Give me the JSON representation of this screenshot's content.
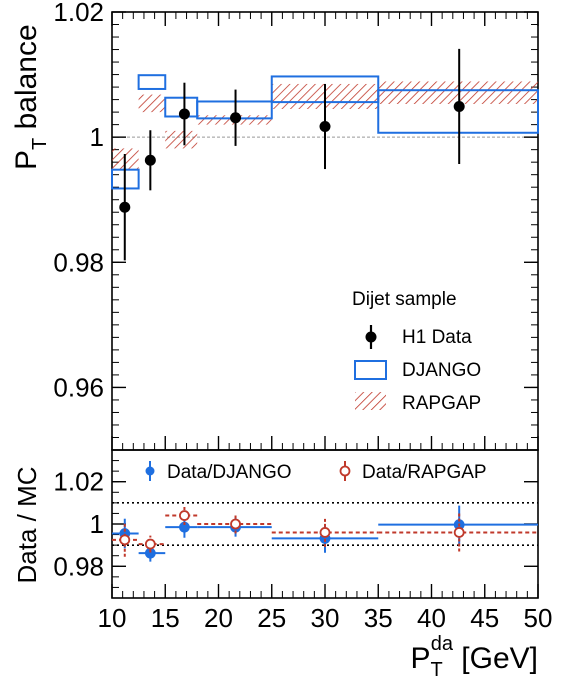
{
  "chart_data": [
    {
      "type": "scatter",
      "panel": "main",
      "ylabel_main": "P",
      "ylabel_sub": "T",
      "ylabel_rest": " balance",
      "ylim": [
        0.95,
        1.02
      ],
      "xlim": [
        10,
        50
      ],
      "yticks": [
        0.96,
        0.98,
        1,
        1.02
      ],
      "ytick_labels": [
        "0.96",
        "0.98",
        "1",
        "1.02"
      ],
      "reference_line": 1.0,
      "legend": {
        "title": "Dijet sample",
        "entries": [
          "H1 Data",
          "DJANGO",
          "RAPGAP"
        ],
        "position": "lower-right"
      },
      "series": [
        {
          "name": "H1 Data",
          "kind": "points",
          "color": "#000000",
          "points": [
            {
              "x": 11.2,
              "y": 0.9888,
              "err": 0.0085
            },
            {
              "x": 13.6,
              "y": 0.9963,
              "err": 0.0048
            },
            {
              "x": 16.8,
              "y": 1.0037,
              "err": 0.005
            },
            {
              "x": 21.6,
              "y": 1.0031,
              "err": 0.0045
            },
            {
              "x": 30.0,
              "y": 1.0017,
              "err": 0.0068
            },
            {
              "x": 42.6,
              "y": 1.0049,
              "err": 0.0092
            }
          ]
        },
        {
          "name": "DJANGO",
          "kind": "boxes",
          "color": "#1f6fe0",
          "bins": [
            {
              "x0": 10,
              "x1": 12.5,
              "ylo": 0.9918,
              "yhi": 0.9948
            },
            {
              "x0": 12.5,
              "x1": 15,
              "ylo": 1.0077,
              "yhi": 1.0099
            },
            {
              "x0": 15,
              "x1": 18,
              "ylo": 1.0033,
              "yhi": 1.0063
            },
            {
              "x0": 18,
              "x1": 25,
              "ylo": 1.003,
              "yhi": 1.0057
            },
            {
              "x0": 25,
              "x1": 35,
              "ylo": 1.0056,
              "yhi": 1.0097
            },
            {
              "x0": 35,
              "x1": 50,
              "ylo": 1.0007,
              "yhi": 1.0075
            }
          ]
        },
        {
          "name": "RAPGAP",
          "kind": "hatched",
          "color": "#c0392b",
          "bins": [
            {
              "x0": 10,
              "x1": 12.5,
              "ylo": 0.9947,
              "yhi": 0.9982
            },
            {
              "x0": 12.5,
              "x1": 15,
              "ylo": 1.004,
              "yhi": 1.0068
            },
            {
              "x0": 15,
              "x1": 18,
              "ylo": 0.9982,
              "yhi": 1.001
            },
            {
              "x0": 18,
              "x1": 25,
              "ylo": 1.002,
              "yhi": 1.0035
            },
            {
              "x0": 25,
              "x1": 35,
              "ylo": 1.0045,
              "yhi": 1.0085
            },
            {
              "x0": 35,
              "x1": 50,
              "ylo": 1.0053,
              "yhi": 1.0089
            }
          ]
        }
      ]
    },
    {
      "type": "scatter",
      "panel": "ratio",
      "ylabel": "Data / MC",
      "ylim": [
        0.965,
        1.035
      ],
      "yticks": [
        0.98,
        1,
        1.02
      ],
      "ytick_labels": [
        "0.98",
        "1",
        "1.02"
      ],
      "xlim": [
        10,
        50
      ],
      "xticks": [
        10,
        15,
        20,
        25,
        30,
        35,
        40,
        45,
        50
      ],
      "xtick_labels": [
        "10",
        "15",
        "20",
        "25",
        "30",
        "35",
        "40",
        "45",
        "50"
      ],
      "xlabel_main": "P",
      "xlabel_sub": "T",
      "xlabel_sup": "da",
      "xlabel_rest": " [GeV]",
      "reference_lines": [
        1.01,
        0.99
      ],
      "legend": {
        "entries": [
          "Data/DJANGO",
          "Data/RAPGAP"
        ],
        "position": "top"
      },
      "series": [
        {
          "name": "Data/DJANGO",
          "color": "#1f6fe0",
          "marker": "filled",
          "points": [
            {
              "x": 11.2,
              "x0": 10,
              "x1": 12.5,
              "y": 0.9955,
              "err": 0.007
            },
            {
              "x": 13.6,
              "x0": 12.5,
              "x1": 15,
              "y": 0.9862,
              "err": 0.004
            },
            {
              "x": 16.8,
              "x0": 15,
              "x1": 18,
              "y": 0.9985,
              "err": 0.005
            },
            {
              "x": 21.6,
              "x0": 18,
              "x1": 25,
              "y": 0.9985,
              "err": 0.0045
            },
            {
              "x": 30.0,
              "x0": 25,
              "x1": 35,
              "y": 0.9932,
              "err": 0.0068
            },
            {
              "x": 42.6,
              "x0": 35,
              "x1": 50,
              "y": 0.9997,
              "err": 0.009
            }
          ]
        },
        {
          "name": "Data/RAPGAP",
          "color": "#c0392b",
          "marker": "open",
          "points": [
            {
              "x": 11.2,
              "x0": 10,
              "x1": 12.5,
              "y": 0.9925,
              "err": 0.008
            },
            {
              "x": 13.6,
              "x0": 12.5,
              "x1": 15,
              "y": 0.9905,
              "err": 0.004
            },
            {
              "x": 16.8,
              "x0": 15,
              "x1": 18,
              "y": 1.004,
              "err": 0.0045
            },
            {
              "x": 21.6,
              "x0": 18,
              "x1": 25,
              "y": 1.0,
              "err": 0.0045
            },
            {
              "x": 30.0,
              "x0": 25,
              "x1": 35,
              "y": 0.996,
              "err": 0.0068
            },
            {
              "x": 42.6,
              "x0": 35,
              "x1": 50,
              "y": 0.996,
              "err": 0.009
            }
          ]
        }
      ]
    }
  ]
}
